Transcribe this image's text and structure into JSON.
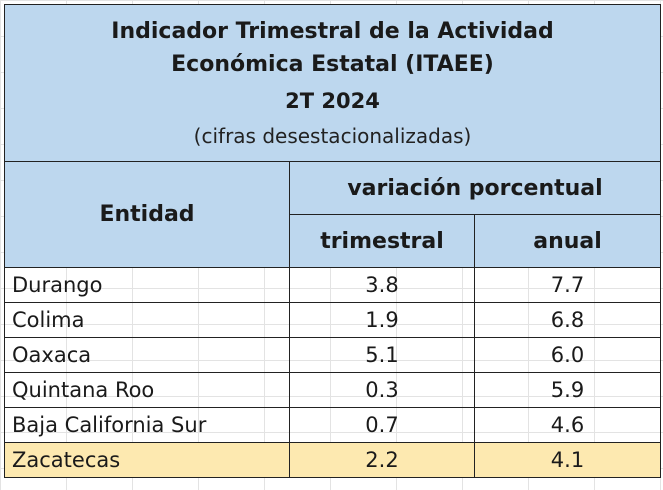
{
  "title": {
    "line1": "Indicador Trimestral de la Actividad",
    "line2": "Económica Estatal (ITAEE)",
    "period": "2T 2024",
    "note": "(cifras desestacionalizadas)"
  },
  "headers": {
    "entity": "Entidad",
    "group": "variación porcentual",
    "quarterly": "trimestral",
    "annual": "anual"
  },
  "rows": [
    {
      "entity": "Durango",
      "quarterly": "3.8",
      "annual": "7.7"
    },
    {
      "entity": "Colima",
      "quarterly": "1.9",
      "annual": "6.8"
    },
    {
      "entity": "Oaxaca",
      "quarterly": "5.1",
      "annual": "6.0"
    },
    {
      "entity": "Quintana Roo",
      "quarterly": "0.3",
      "annual": "5.9"
    },
    {
      "entity": "Baja California Sur",
      "quarterly": "0.7",
      "annual": "4.6"
    },
    {
      "entity": "Zacatecas",
      "quarterly": "2.2",
      "annual": "4.1"
    }
  ],
  "colors": {
    "header_fill": "#bdd7ee",
    "highlight_fill": "#fde9b0"
  },
  "highlight_row": "Zacatecas"
}
